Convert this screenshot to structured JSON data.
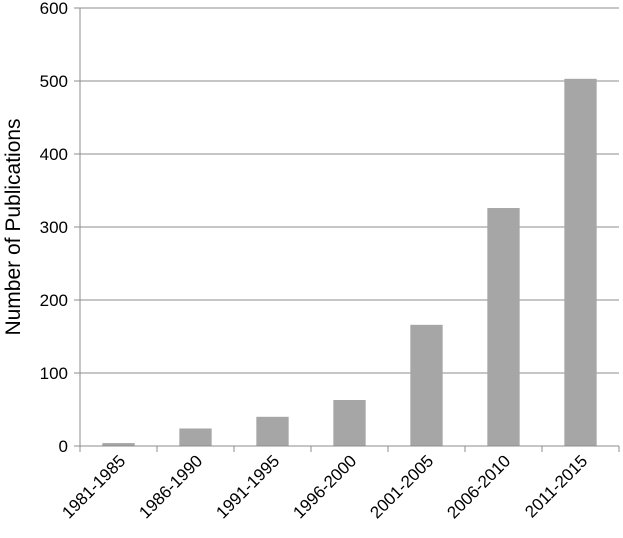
{
  "chart_data": {
    "type": "bar",
    "y_label": "Number of Publications",
    "categories": [
      "1981-1985",
      "1986-1990",
      "1991-1995",
      "1996-2000",
      "2001-2005",
      "2006-2010",
      "2011-2015"
    ],
    "values": [
      4,
      24,
      40,
      63,
      166,
      326,
      503
    ],
    "color": "#a6a6a6",
    "ylim": [
      0,
      600
    ],
    "yticks": [
      0,
      100,
      200,
      300,
      400,
      500,
      600
    ],
    "grid": true
  }
}
